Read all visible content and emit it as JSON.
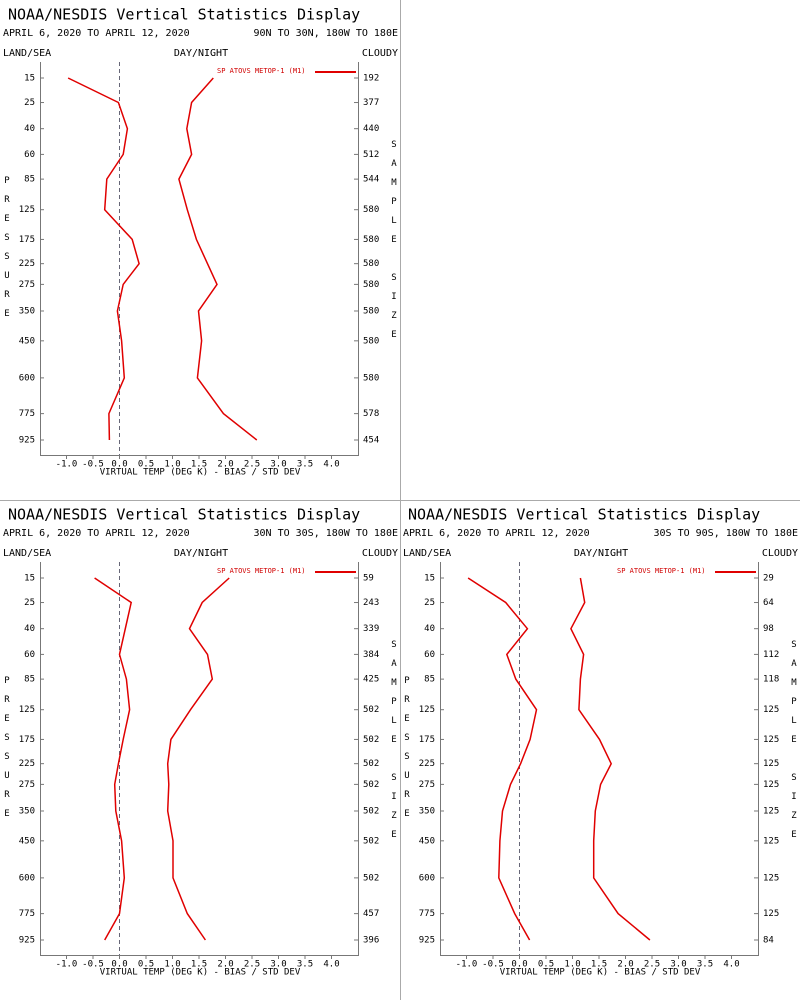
{
  "chart_data": [
    {
      "type": "line",
      "title": "NOAA/NESDIS Vertical Statistics Display",
      "subtitle": "APRIL 6, 2020 TO APRIL 12, 2020",
      "region": "90N TO 30N, 180W TO 180E",
      "land_sea": "LAND/SEA",
      "day_night": "DAY/NIGHT",
      "cloudy": "CLOUDY",
      "ylabel": "PRESSURE",
      "y2label": "SAMPLE SIZE",
      "xlabel": "VIRTUAL TEMP (DEG K) - BIAS / STD DEV",
      "y": [
        15,
        25,
        40,
        60,
        85,
        125,
        175,
        225,
        275,
        350,
        450,
        600,
        775,
        925
      ],
      "ylim": [
        15,
        925
      ],
      "sample_size": [
        192,
        377,
        440,
        512,
        544,
        580,
        580,
        580,
        580,
        580,
        580,
        580,
        578,
        454
      ],
      "xlim": [
        -1.5,
        4.5
      ],
      "xticks": [
        {
          "value": -1,
          "label": "-1.0"
        },
        {
          "value": -0.5,
          "label": "-0.5"
        },
        {
          "value": 0,
          "label": "0.0"
        },
        0.5,
        {
          "value": 1,
          "label": "1.0"
        },
        1.5,
        {
          "value": 2,
          "label": "2.0"
        },
        2.5,
        {
          "value": 3,
          "label": "3.0"
        },
        3.5,
        {
          "value": 4,
          "label": "4.0"
        }
      ],
      "series": [
        {
          "name": "SP ATOVS METOP-1 (M1)",
          "color": "#e00000",
          "values": [
            -0.97,
            -0.02,
            0.15,
            0.07,
            -0.24,
            -0.28,
            0.24,
            0.37,
            0.07,
            -0.04,
            0.04,
            0.09,
            -0.2,
            -0.19
          ],
          "std_dev": [
            1.77,
            1.36,
            1.27,
            1.36,
            1.12,
            1.28,
            1.45,
            1.66,
            1.84,
            1.49,
            1.55,
            1.47,
            1.96,
            2.59
          ]
        }
      ]
    },
    {
      "type": "line",
      "title": "NOAA/NESDIS Vertical Statistics Display",
      "subtitle": "APRIL 6, 2020 TO APRIL 12, 2020",
      "region": "30N TO 30S, 180W TO 180E",
      "land_sea": "LAND/SEA",
      "day_night": "DAY/NIGHT",
      "cloudy": "CLOUDY",
      "ylabel": "PRESSURE",
      "y2label": "SAMPLE SIZE",
      "xlabel": "VIRTUAL TEMP (DEG K) - BIAS / STD DEV",
      "y": [
        15,
        25,
        40,
        60,
        85,
        125,
        175,
        225,
        275,
        350,
        450,
        600,
        775,
        925
      ],
      "ylim": [
        15,
        925
      ],
      "sample_size": [
        59,
        243,
        339,
        384,
        425,
        502,
        502,
        502,
        502,
        502,
        502,
        502,
        457,
        396
      ],
      "xlim": [
        -1.5,
        4.5
      ],
      "xticks": [
        {
          "value": -1,
          "label": "-1.0"
        },
        {
          "value": -0.5,
          "label": "-0.5"
        },
        {
          "value": 0,
          "label": "0.0"
        },
        0.5,
        {
          "value": 1,
          "label": "1.0"
        },
        1.5,
        {
          "value": 2,
          "label": "2.0"
        },
        2.5,
        {
          "value": 3,
          "label": "3.0"
        },
        3.5,
        {
          "value": 4,
          "label": "4.0"
        }
      ],
      "series": [
        {
          "name": "SP ATOVS METOP-1 (M1)",
          "color": "#e00000",
          "values": [
            -0.47,
            0.22,
            0.11,
            0,
            0.13,
            0.19,
            0.07,
            -0.02,
            -0.09,
            -0.07,
            0.04,
            0.09,
            0,
            -0.28
          ],
          "std_dev": [
            2.07,
            1.56,
            1.32,
            1.66,
            1.75,
            1.34,
            0.97,
            0.91,
            0.93,
            0.91,
            1.01,
            1.01,
            1.28,
            1.62
          ]
        }
      ]
    },
    {
      "type": "line",
      "title": "NOAA/NESDIS Vertical Statistics Display",
      "subtitle": "APRIL 6, 2020 TO APRIL 12, 2020",
      "region": "30S TO 90S, 180W TO 180E",
      "land_sea": "LAND/SEA",
      "day_night": "DAY/NIGHT",
      "cloudy": "CLOUDY",
      "ylabel": "PRESSURE",
      "y2label": "SAMPLE SIZE",
      "xlabel": "VIRTUAL TEMP (DEG K) - BIAS / STD DEV",
      "y": [
        15,
        25,
        40,
        60,
        85,
        125,
        175,
        225,
        275,
        350,
        450,
        600,
        775,
        925
      ],
      "ylim": [
        15,
        925
      ],
      "sample_size": [
        29,
        64,
        98,
        112,
        118,
        125,
        125,
        125,
        125,
        125,
        125,
        125,
        125,
        84
      ],
      "xlim": [
        -1.5,
        4.5
      ],
      "xticks": [
        {
          "value": -1,
          "label": "-1.0"
        },
        {
          "value": -0.5,
          "label": "-0.5"
        },
        {
          "value": 0,
          "label": "0.0"
        },
        0.5,
        {
          "value": 1,
          "label": "1.0"
        },
        1.5,
        {
          "value": 2,
          "label": "2.0"
        },
        2.5,
        {
          "value": 3,
          "label": "3.0"
        },
        3.5,
        {
          "value": 4,
          "label": "4.0"
        }
      ],
      "series": [
        {
          "name": "SP ATOVS METOP-1 (M1)",
          "color": "#e00000",
          "values": [
            -0.97,
            -0.26,
            0.15,
            -0.24,
            -0.07,
            0.32,
            0.2,
            0.02,
            -0.17,
            -0.32,
            -0.37,
            -0.39,
            -0.09,
            0.19
          ],
          "std_dev": [
            1.15,
            1.23,
            0.97,
            1.21,
            1.15,
            1.12,
            1.51,
            1.73,
            1.53,
            1.43,
            1.4,
            1.4,
            1.86,
            2.46
          ]
        }
      ]
    }
  ]
}
